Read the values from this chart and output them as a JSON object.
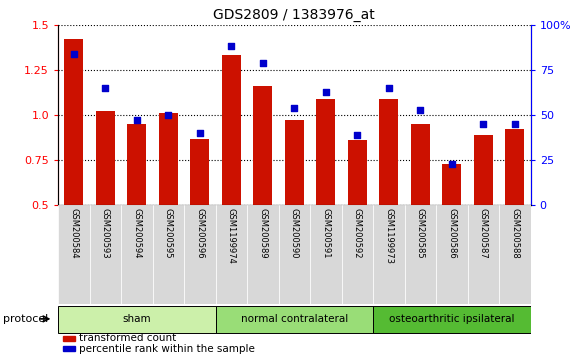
{
  "title": "GDS2809 / 1383976_at",
  "samples": [
    "GSM200584",
    "GSM200593",
    "GSM200594",
    "GSM200595",
    "GSM200596",
    "GSM1199974",
    "GSM200589",
    "GSM200590",
    "GSM200591",
    "GSM200592",
    "GSM1199973",
    "GSM200585",
    "GSM200586",
    "GSM200587",
    "GSM200588"
  ],
  "transformed_count": [
    1.42,
    1.02,
    0.95,
    1.01,
    0.87,
    1.33,
    1.16,
    0.97,
    1.09,
    0.86,
    1.09,
    0.95,
    0.73,
    0.89,
    0.92
  ],
  "percentile_rank": [
    84,
    65,
    47,
    50,
    40,
    88,
    79,
    54,
    63,
    39,
    65,
    53,
    23,
    45,
    45
  ],
  "groups": [
    {
      "label": "sham",
      "start": 0,
      "end": 5
    },
    {
      "label": "normal contralateral",
      "start": 5,
      "end": 10
    },
    {
      "label": "osteoarthritic ipsilateral",
      "start": 10,
      "end": 15
    }
  ],
  "group_colors": [
    "#ccf0aa",
    "#99dd77",
    "#55bb33"
  ],
  "ylim_left": [
    0.5,
    1.5
  ],
  "ylim_right": [
    0,
    100
  ],
  "yticks_left": [
    0.5,
    0.75,
    1.0,
    1.25,
    1.5
  ],
  "yticks_right": [
    0,
    25,
    50,
    75,
    100
  ],
  "ytick_labels_right": [
    "0",
    "25",
    "50",
    "75",
    "100%"
  ],
  "bar_color": "#cc1100",
  "dot_color": "#0000cc",
  "bar_width": 0.6,
  "plot_bg": "#ffffff",
  "protocol_label": "protocol",
  "legend_items": [
    {
      "label": "transformed count",
      "color": "#cc1100"
    },
    {
      "label": "percentile rank within the sample",
      "color": "#0000cc"
    }
  ]
}
